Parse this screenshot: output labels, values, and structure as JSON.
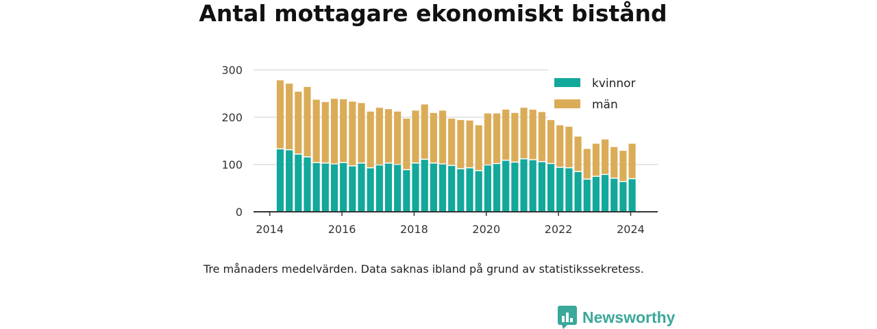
{
  "title": "Antal mottagare ekonomiskt bistånd",
  "caption": "Tre månaders medelvärden. Data saknas ibland på grund av statistikssekretess.",
  "brand": {
    "name": "Newsworthy",
    "icon": "newsworthy-chart-icon",
    "color": "#3aa89a"
  },
  "colors": {
    "kvinnor": "#12a89b",
    "man": "#dbac58",
    "grid": "#dddddd",
    "axis": "#333333"
  },
  "chart_data": {
    "type": "bar",
    "stacked": true,
    "title": "Antal mottagare ekonomiskt bistånd",
    "y_ticks": [
      0,
      100,
      200,
      300
    ],
    "ylim": [
      0,
      300
    ],
    "x_ticks": [
      "2014",
      "2016",
      "2018",
      "2020",
      "2022",
      "2024"
    ],
    "xlim": [
      2013.55,
      2024.75
    ],
    "grid": true,
    "legend_position": "top-right",
    "x": [
      2014.29,
      2014.54,
      2014.79,
      2015.04,
      2015.29,
      2015.54,
      2015.79,
      2016.04,
      2016.29,
      2016.54,
      2016.79,
      2017.04,
      2017.29,
      2017.54,
      2017.79,
      2018.04,
      2018.29,
      2018.54,
      2018.79,
      2019.04,
      2019.29,
      2019.54,
      2019.79,
      2020.04,
      2020.29,
      2020.54,
      2020.79,
      2021.04,
      2021.29,
      2021.54,
      2021.79,
      2022.04,
      2022.29,
      2022.54,
      2022.79,
      2023.04,
      2023.29,
      2023.54,
      2023.79,
      2024.04
    ],
    "series": [
      {
        "name": "kvinnor",
        "values": [
          132,
          130,
          121,
          115,
          103,
          102,
          100,
          103,
          96,
          102,
          92,
          98,
          102,
          99,
          88,
          102,
          110,
          102,
          100,
          97,
          90,
          92,
          86,
          98,
          101,
          108,
          104,
          111,
          109,
          105,
          101,
          93,
          92,
          84,
          68,
          74,
          78,
          70,
          63,
          69
        ]
      },
      {
        "name": "män",
        "values": [
          146,
          141,
          133,
          149,
          134,
          130,
          139,
          135,
          137,
          128,
          120,
          122,
          115,
          113,
          109,
          112,
          117,
          107,
          114,
          100,
          104,
          101,
          97,
          110,
          107,
          108,
          105,
          109,
          107,
          106,
          93,
          90,
          88,
          75,
          65,
          70,
          75,
          67,
          66,
          75
        ]
      }
    ]
  }
}
